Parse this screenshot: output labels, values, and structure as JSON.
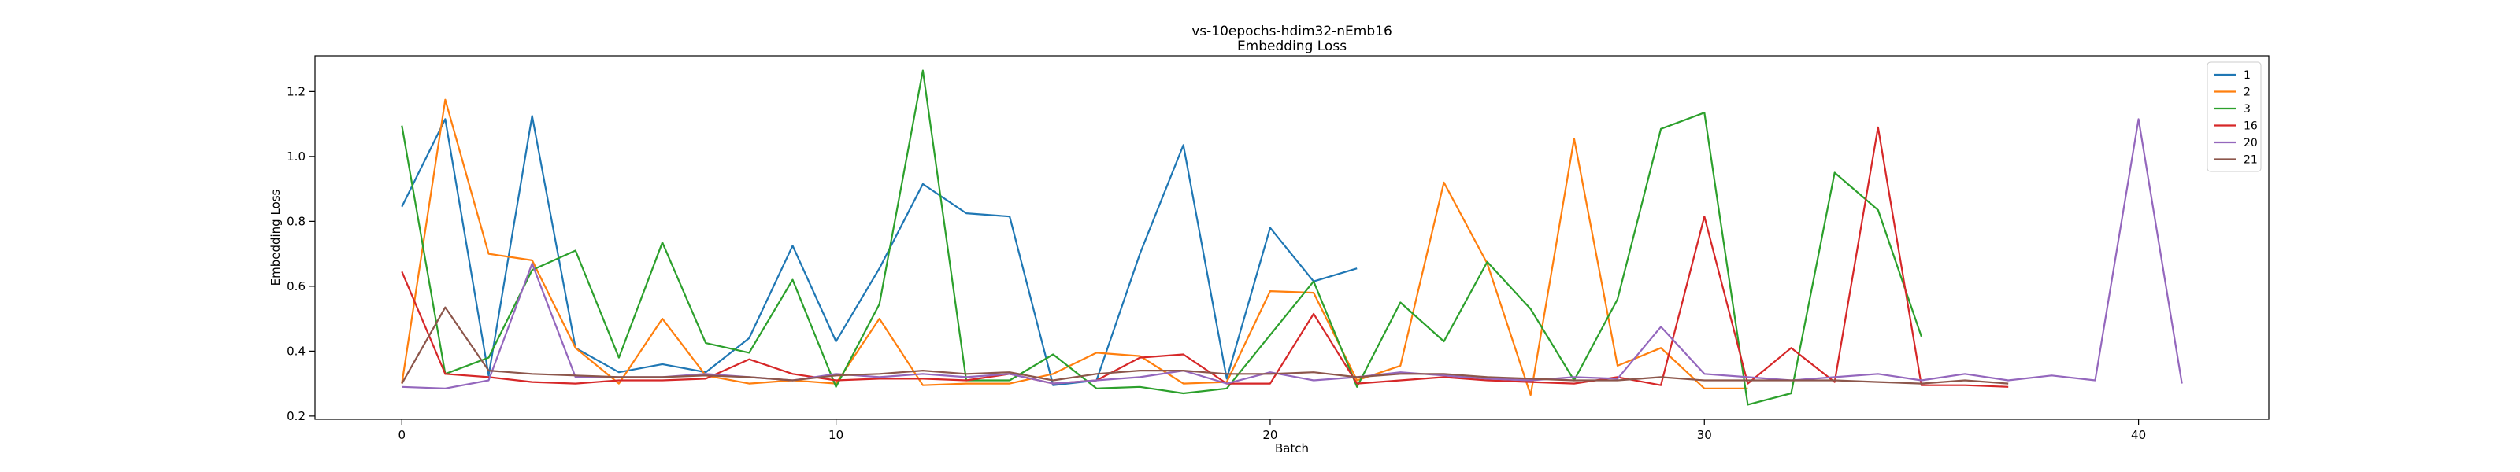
{
  "chart_data": {
    "type": "line",
    "title": "vs-10epochs-hdim32-nEmb16",
    "subtitle": "Embedding Loss",
    "xlabel": "Batch",
    "ylabel": "Embedding Loss",
    "xlim": [
      -2,
      43
    ],
    "ylim": [
      0.19,
      1.31
    ],
    "xticks": [
      0,
      10,
      20,
      30,
      40
    ],
    "yticks": [
      0.2,
      0.4,
      0.6,
      0.8,
      1.0,
      1.2
    ],
    "yticks_labels": [
      "0.2",
      "0.4",
      "0.6",
      "0.8",
      "1.0",
      "1.2"
    ],
    "grid": false,
    "legend": "top-right",
    "series": [
      {
        "name": "1",
        "color": "#1f77b4",
        "values": [
          0.845,
          1.115,
          0.325,
          1.125,
          0.41,
          0.335,
          0.36,
          0.335,
          0.44,
          0.725,
          0.43,
          0.655,
          0.915,
          0.825,
          0.815,
          0.295,
          0.31,
          0.7,
          1.035,
          0.315,
          0.78,
          0.615,
          0.655
        ]
      },
      {
        "name": "2",
        "color": "#ff7f0e",
        "values": [
          0.3,
          1.175,
          0.7,
          0.68,
          0.41,
          0.3,
          0.5,
          0.325,
          0.3,
          0.31,
          0.3,
          0.5,
          0.295,
          0.3,
          0.3,
          0.33,
          0.395,
          0.385,
          0.3,
          0.305,
          0.585,
          0.58,
          0.31,
          0.355,
          0.92,
          0.67,
          0.265,
          1.055,
          0.355,
          0.41,
          0.285,
          0.285
        ]
      },
      {
        "name": "3",
        "color": "#2ca02c",
        "values": [
          1.095,
          0.33,
          0.38,
          0.65,
          0.71,
          0.38,
          0.735,
          0.425,
          0.395,
          0.62,
          0.29,
          0.545,
          1.265,
          0.31,
          0.31,
          0.39,
          0.285,
          0.29,
          0.27,
          0.285,
          0.45,
          0.615,
          0.29,
          0.55,
          0.43,
          0.675,
          0.53,
          0.31,
          0.56,
          1.085,
          1.135,
          0.235,
          0.27,
          0.95,
          0.835,
          0.445
        ]
      },
      {
        "name": "16",
        "color": "#d62728",
        "values": [
          0.645,
          0.33,
          0.32,
          0.305,
          0.3,
          0.31,
          0.31,
          0.315,
          0.375,
          0.33,
          0.31,
          0.315,
          0.315,
          0.31,
          0.33,
          0.3,
          0.31,
          0.38,
          0.39,
          0.3,
          0.3,
          0.515,
          0.3,
          0.31,
          0.32,
          0.31,
          0.305,
          0.3,
          0.32,
          0.295,
          0.815,
          0.3,
          0.41,
          0.305,
          1.09,
          0.295,
          0.295,
          0.29
        ]
      },
      {
        "name": "20",
        "color": "#9467bd",
        "values": [
          0.29,
          0.285,
          0.31,
          0.67,
          0.32,
          0.32,
          0.32,
          0.33,
          0.32,
          0.31,
          0.33,
          0.32,
          0.33,
          0.32,
          0.33,
          0.3,
          0.31,
          0.32,
          0.34,
          0.3,
          0.335,
          0.31,
          0.32,
          0.335,
          0.325,
          0.315,
          0.31,
          0.32,
          0.315,
          0.475,
          0.33,
          0.32,
          0.31,
          0.32,
          0.33,
          0.31,
          0.33,
          0.31,
          0.325,
          0.31,
          1.115,
          0.3
        ]
      },
      {
        "name": "21",
        "color": "#8c564b",
        "values": [
          0.3,
          0.535,
          0.34,
          0.33,
          0.325,
          0.32,
          0.32,
          0.325,
          0.32,
          0.31,
          0.325,
          0.33,
          0.34,
          0.33,
          0.335,
          0.31,
          0.33,
          0.34,
          0.34,
          0.33,
          0.33,
          0.335,
          0.32,
          0.33,
          0.33,
          0.32,
          0.315,
          0.31,
          0.31,
          0.32,
          0.31,
          0.31,
          0.31,
          0.31,
          0.305,
          0.3,
          0.31,
          0.3
        ]
      }
    ]
  }
}
